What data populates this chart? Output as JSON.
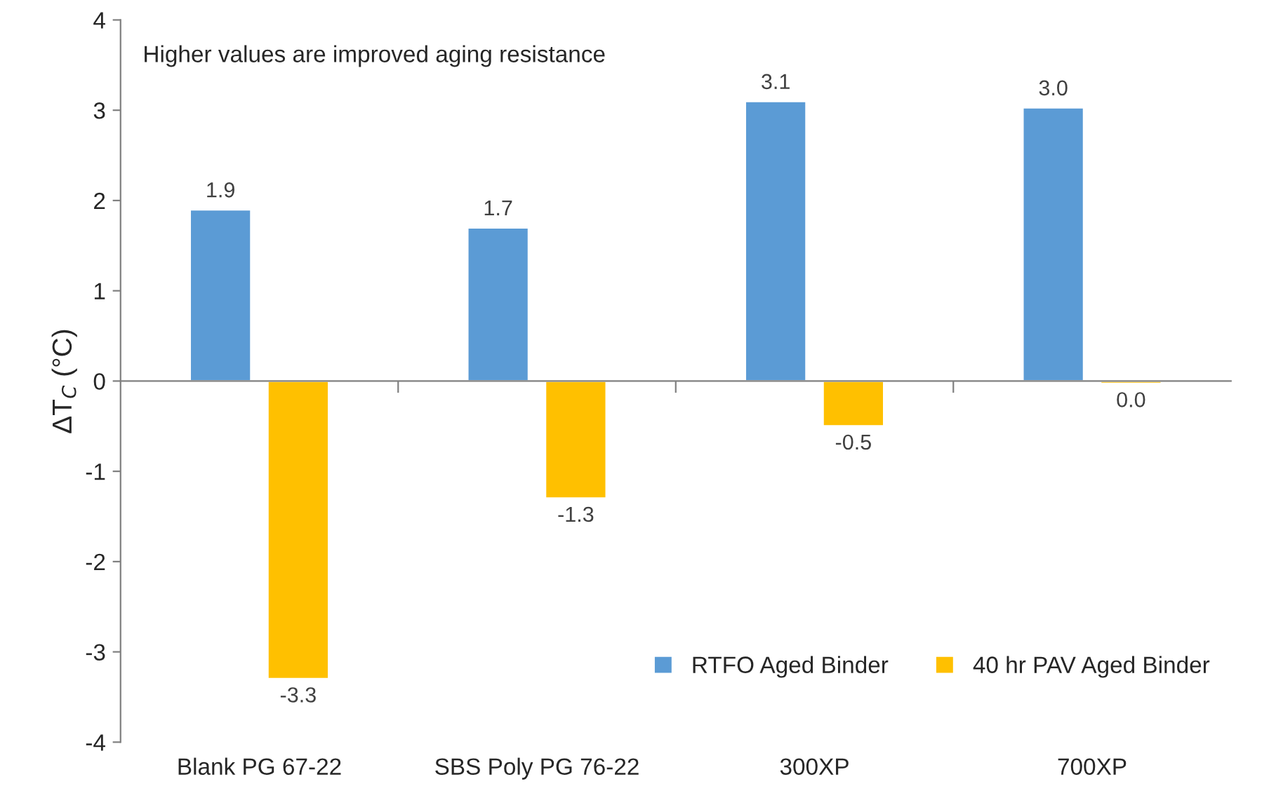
{
  "chart_data": {
    "type": "bar",
    "ylabel": "ΔT$_{C}$ (°C)",
    "annotations": [
      "Higher values are improved aging resistance"
    ],
    "categories": [
      "Blank PG 67-22",
      "SBS Poly PG 76-22",
      "300XP",
      "700XP"
    ],
    "series": [
      {
        "name": "RTFO Aged Binder",
        "color": "#5b9bd5",
        "values": [
          1.9,
          1.7,
          3.1,
          3.03
        ],
        "value_labels": [
          "1.9",
          "1.7",
          "3.1",
          "3.0"
        ]
      },
      {
        "name": "40 hr PAV Aged Binder",
        "color": "#ffc000",
        "values": [
          -3.3,
          -1.3,
          -0.5,
          -0.03
        ],
        "value_labels": [
          "-3.3",
          "-1.3",
          "-0.5",
          "0.0"
        ]
      }
    ],
    "ylim": [
      -4,
      4
    ],
    "yticks": [
      -4,
      -3,
      -2,
      -1,
      0,
      1,
      2,
      3,
      4
    ],
    "legend": "bottom right"
  }
}
